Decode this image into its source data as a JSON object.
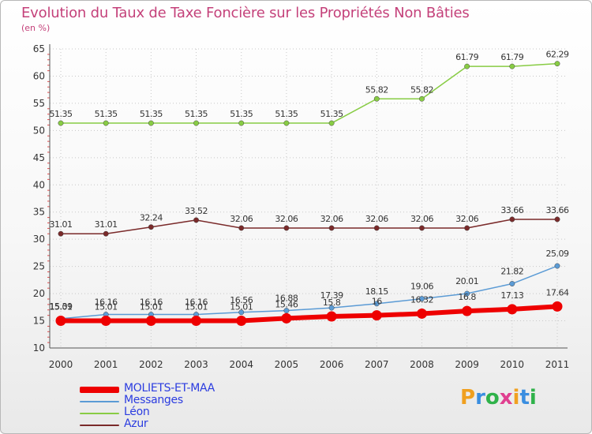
{
  "title": "Evolution du Taux de Taxe Foncière sur les Propriétés Non Bâties",
  "subtitle": "(en %)",
  "logo": {
    "text": "Proxiti",
    "letters": [
      "P",
      "r",
      "o",
      "x",
      "i",
      "t",
      "i"
    ],
    "colors": [
      "#f0a020",
      "#3a8ee0",
      "#2fb24a",
      "#e04090",
      "#f0a020",
      "#3a8ee0",
      "#2fb24a"
    ]
  },
  "chart_data": {
    "type": "line",
    "title": "Evolution du Taux de Taxe Foncière sur les Propriétés Non Bâties",
    "ylabel": "(en %)",
    "xlabel": "",
    "x": [
      "2000",
      "2001",
      "2002",
      "2003",
      "2004",
      "2005",
      "2006",
      "2007",
      "2008",
      "2009",
      "2010",
      "2011"
    ],
    "ylim": [
      10,
      65
    ],
    "yticks": [
      "10",
      "15",
      "20",
      "25",
      "30",
      "35",
      "40",
      "45",
      "50",
      "55",
      "60",
      "65"
    ],
    "grid": true,
    "legend_position": "bottom-left",
    "series": [
      {
        "name": "MOLIETS-ET-MAA",
        "color": "#ee0000",
        "values": [
          15.01,
          15.01,
          15.01,
          15.01,
          15.01,
          15.46,
          15.8,
          16,
          16.32,
          16.8,
          17.13,
          17.64
        ],
        "labels": [
          "15.01",
          "15.01",
          "15.01",
          "15.01",
          "15.01",
          "15.46",
          "15.8",
          "16",
          "16.32",
          "16.8",
          "17.13",
          "17.64"
        ]
      },
      {
        "name": "Messanges",
        "color": "#5b9bd5",
        "values": [
          15.39,
          16.16,
          16.16,
          16.16,
          16.56,
          16.88,
          17.39,
          18.15,
          19.06,
          20.01,
          21.82,
          25.09
        ],
        "labels": [
          "15.39",
          "16.16",
          "16.16",
          "16.16",
          "16.56",
          "16.88",
          "17.39",
          "18.15",
          "19.06",
          "20.01",
          "21.82",
          "25.09"
        ]
      },
      {
        "name": "Léon",
        "color": "#88cc44",
        "values": [
          51.35,
          51.35,
          51.35,
          51.35,
          51.35,
          51.35,
          51.35,
          55.82,
          55.82,
          61.79,
          61.79,
          62.29
        ],
        "labels": [
          "51.35",
          "51.35",
          "51.35",
          "51.35",
          "51.35",
          "51.35",
          "51.35",
          "55.82",
          "55.82",
          "61.79",
          "61.79",
          "62.29"
        ]
      },
      {
        "name": "Azur",
        "color": "#7a2a2a",
        "values": [
          31.01,
          31.01,
          32.24,
          33.52,
          32.06,
          32.06,
          32.06,
          32.06,
          32.06,
          32.06,
          33.66,
          33.66
        ],
        "labels": [
          "31.01",
          "31.01",
          "32.24",
          "33.52",
          "32.06",
          "32.06",
          "32.06",
          "32.06",
          "32.06",
          "32.06",
          "33.66",
          "33.66"
        ]
      }
    ]
  }
}
